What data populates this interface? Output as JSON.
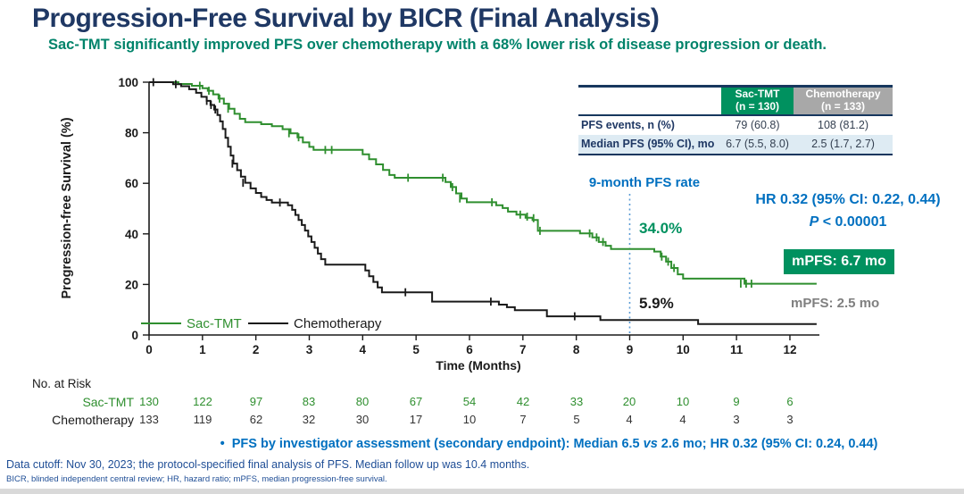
{
  "slide": {
    "title": "Progression-Free Survival by BICR (Final Analysis)",
    "subtitle": "Sac-TMT significantly improved PFS over chemotherapy with a 68% lower risk of disease progression or death.",
    "bullet_marker": "•",
    "bullet_prefix": "PFS by investigator assessment (secondary endpoint): Median 6.5 ",
    "bullet_vs": "vs",
    "bullet_suffix": " 2.6 mo; HR 0.32 (95% CI: 0.24, 0.44)",
    "footnote1": "Data cutoff: Nov 30, 2023; the protocol-specified final analysis of PFS.  Median follow up was 10.4 months.",
    "footnote2": "BICR, blinded independent central review; HR, hazard ratio; mPFS, median progression-free survival."
  },
  "summary_table": {
    "col_headers": [
      {
        "label": "Sac-TMT",
        "sub": "(n = 130)"
      },
      {
        "label": "Chemotherapy",
        "sub": "(n = 133)"
      }
    ],
    "rows": [
      {
        "label": "PFS events, n (%)",
        "values": [
          "79 (60.8)",
          "108 (81.2)"
        ]
      },
      {
        "label": "Median PFS (95% CI), mo",
        "values": [
          "6.7 (5.5, 8.0)",
          "2.5 (1.7, 2.7)"
        ]
      }
    ]
  },
  "chart_data": {
    "type": "line",
    "subtype": "kaplan-meier-step",
    "xlabel": "Time (Months)",
    "ylabel": "Progression-free Survival (%)",
    "xlim": [
      0,
      12.6
    ],
    "ylim": [
      0,
      100
    ],
    "xticks": [
      0,
      1,
      2,
      3,
      4,
      5,
      6,
      7,
      8,
      9,
      10,
      11,
      12
    ],
    "yticks": [
      0,
      20,
      40,
      60,
      80,
      100
    ],
    "grid": "off",
    "legend_position": "inside-bottom-left",
    "series": [
      {
        "name": "Sac-TMT",
        "color": "#2F8F2F",
        "steps": [
          [
            0,
            100
          ],
          [
            0.55,
            99.3
          ],
          [
            0.8,
            98.6
          ],
          [
            1.0,
            97.6
          ],
          [
            1.1,
            96.6
          ],
          [
            1.2,
            95.2
          ],
          [
            1.3,
            93.5
          ],
          [
            1.4,
            91.5
          ],
          [
            1.5,
            89.5
          ],
          [
            1.6,
            87.5
          ],
          [
            1.7,
            85.5
          ],
          [
            1.8,
            84.2
          ],
          [
            2.1,
            83.4
          ],
          [
            2.3,
            82.6
          ],
          [
            2.5,
            81.4
          ],
          [
            2.65,
            79.8
          ],
          [
            2.78,
            78.2
          ],
          [
            2.88,
            76.2
          ],
          [
            3.0,
            74.4
          ],
          [
            3.08,
            73.2
          ],
          [
            4.0,
            71.5
          ],
          [
            4.12,
            69.5
          ],
          [
            4.25,
            67.5
          ],
          [
            4.38,
            65.3
          ],
          [
            4.5,
            63.3
          ],
          [
            4.6,
            62.2
          ],
          [
            5.55,
            60.5
          ],
          [
            5.65,
            58.5
          ],
          [
            5.75,
            56.0
          ],
          [
            5.85,
            54.0
          ],
          [
            5.95,
            52.5
          ],
          [
            6.5,
            51.3
          ],
          [
            6.62,
            50.2
          ],
          [
            6.72,
            48.8
          ],
          [
            6.88,
            47.6
          ],
          [
            7.05,
            46.4
          ],
          [
            7.18,
            45.5
          ],
          [
            7.28,
            41.2
          ],
          [
            8.07,
            40.2
          ],
          [
            8.3,
            38.6
          ],
          [
            8.42,
            36.8
          ],
          [
            8.55,
            35.3
          ],
          [
            8.65,
            34.0
          ],
          [
            9.46,
            33.0
          ],
          [
            9.58,
            31.0
          ],
          [
            9.68,
            29.0
          ],
          [
            9.78,
            26.5
          ],
          [
            9.9,
            24.0
          ],
          [
            10.0,
            22.3
          ],
          [
            11.15,
            20.3
          ],
          [
            12.5,
            20.3
          ]
        ],
        "censors": [
          [
            0.95,
            98.6
          ],
          [
            1.12,
            96.6
          ],
          [
            1.32,
            93.5
          ],
          [
            1.48,
            89.5
          ],
          [
            2.62,
            79.8
          ],
          [
            2.8,
            78.2
          ],
          [
            3.3,
            73.2
          ],
          [
            3.42,
            73.2
          ],
          [
            4.85,
            62.2
          ],
          [
            5.5,
            62.2
          ],
          [
            5.68,
            58.5
          ],
          [
            5.82,
            54.0
          ],
          [
            6.42,
            52.5
          ],
          [
            6.95,
            47.6
          ],
          [
            7.08,
            46.8
          ],
          [
            7.2,
            46.2
          ],
          [
            7.32,
            41.2
          ],
          [
            8.25,
            40.2
          ],
          [
            8.38,
            38.6
          ],
          [
            8.5,
            36.8
          ],
          [
            9.6,
            31.0
          ],
          [
            9.72,
            29.0
          ],
          [
            9.83,
            26.5
          ],
          [
            11.08,
            20.3
          ],
          [
            11.18,
            20.3
          ],
          [
            11.28,
            20.3
          ]
        ]
      },
      {
        "name": "Chemotherapy",
        "color": "#1A1A1A",
        "steps": [
          [
            0,
            100
          ],
          [
            0.45,
            99.2
          ],
          [
            0.6,
            98.4
          ],
          [
            0.75,
            97.2
          ],
          [
            0.88,
            95.8
          ],
          [
            0.98,
            94.2
          ],
          [
            1.08,
            92.6
          ],
          [
            1.15,
            91.0
          ],
          [
            1.22,
            89.2
          ],
          [
            1.28,
            87.0
          ],
          [
            1.33,
            84.5
          ],
          [
            1.38,
            81.5
          ],
          [
            1.43,
            78.0
          ],
          [
            1.48,
            74.5
          ],
          [
            1.53,
            71.0
          ],
          [
            1.58,
            67.8
          ],
          [
            1.65,
            65.2
          ],
          [
            1.72,
            62.6
          ],
          [
            1.8,
            60.2
          ],
          [
            1.9,
            58.0
          ],
          [
            2.0,
            56.2
          ],
          [
            2.1,
            54.6
          ],
          [
            2.2,
            53.4
          ],
          [
            2.3,
            52.4
          ],
          [
            2.6,
            51.3
          ],
          [
            2.68,
            49.5
          ],
          [
            2.74,
            47.5
          ],
          [
            2.8,
            45.5
          ],
          [
            2.86,
            43.5
          ],
          [
            2.92,
            41.3
          ],
          [
            2.98,
            39.0
          ],
          [
            3.04,
            36.8
          ],
          [
            3.1,
            34.5
          ],
          [
            3.16,
            32.2
          ],
          [
            3.22,
            30.0
          ],
          [
            3.3,
            27.8
          ],
          [
            4.05,
            25.5
          ],
          [
            4.12,
            23.2
          ],
          [
            4.2,
            21.0
          ],
          [
            4.28,
            18.8
          ],
          [
            4.36,
            16.9
          ],
          [
            5.3,
            13.2
          ],
          [
            6.55,
            12.0
          ],
          [
            6.7,
            11.0
          ],
          [
            6.85,
            9.8
          ],
          [
            7.45,
            7.4
          ],
          [
            8.45,
            5.9
          ],
          [
            10.28,
            4.3
          ],
          [
            12.5,
            4.3
          ]
        ],
        "censors": [
          [
            0.08,
            100
          ],
          [
            0.5,
            99.2
          ],
          [
            1.08,
            92.6
          ],
          [
            1.16,
            91.0
          ],
          [
            1.24,
            89.2
          ],
          [
            1.56,
            67.8
          ],
          [
            1.76,
            60.2
          ],
          [
            2.45,
            52.4
          ],
          [
            4.8,
            16.9
          ],
          [
            6.4,
            13.2
          ],
          [
            7.97,
            7.4
          ]
        ]
      }
    ],
    "reference_line": {
      "x": 9,
      "style": "dotted",
      "color": "#5B9BD5"
    },
    "annotations": {
      "nine_month_label": "9-month PFS rate",
      "rate_sac": "34.0%",
      "rate_chemo": "5.9%",
      "hr_text": "HR 0.32 (95% CI: 0.22, 0.44)",
      "p_italic": "P",
      "p_rest": " < 0.00001",
      "mpfs_sac": "mPFS: 6.7 mo",
      "mpfs_chemo": "mPFS: 2.5 mo"
    }
  },
  "risk_table": {
    "title": "No. at Risk",
    "months": [
      0,
      1,
      2,
      3,
      4,
      5,
      6,
      7,
      8,
      9,
      10,
      11,
      12
    ],
    "rows": [
      {
        "name": "Sac-TMT",
        "color": "#2F8F2F",
        "counts": [
          "130",
          "122",
          "97",
          "83",
          "80",
          "67",
          "54",
          "42",
          "33",
          "20",
          "10",
          "9",
          "6"
        ]
      },
      {
        "name": "Chemotherapy",
        "color": "#1A1A1A",
        "counts": [
          "133",
          "119",
          "62",
          "32",
          "30",
          "17",
          "10",
          "7",
          "5",
          "4",
          "4",
          "3",
          "3"
        ]
      }
    ]
  },
  "colors": {
    "title_navy": "#1F3864",
    "subtitle_teal": "#00836A",
    "accent_green": "#00915F",
    "curve_green": "#2F8F2F",
    "curve_black": "#1A1A1A",
    "blue_text": "#0070C0",
    "table_gray_header": "#A8A8A8",
    "table_alt_row": "#DEEBF3",
    "ref_line_blue": "#5B9BD5",
    "mpfs_chemo_gray": "#7F7F7F"
  }
}
